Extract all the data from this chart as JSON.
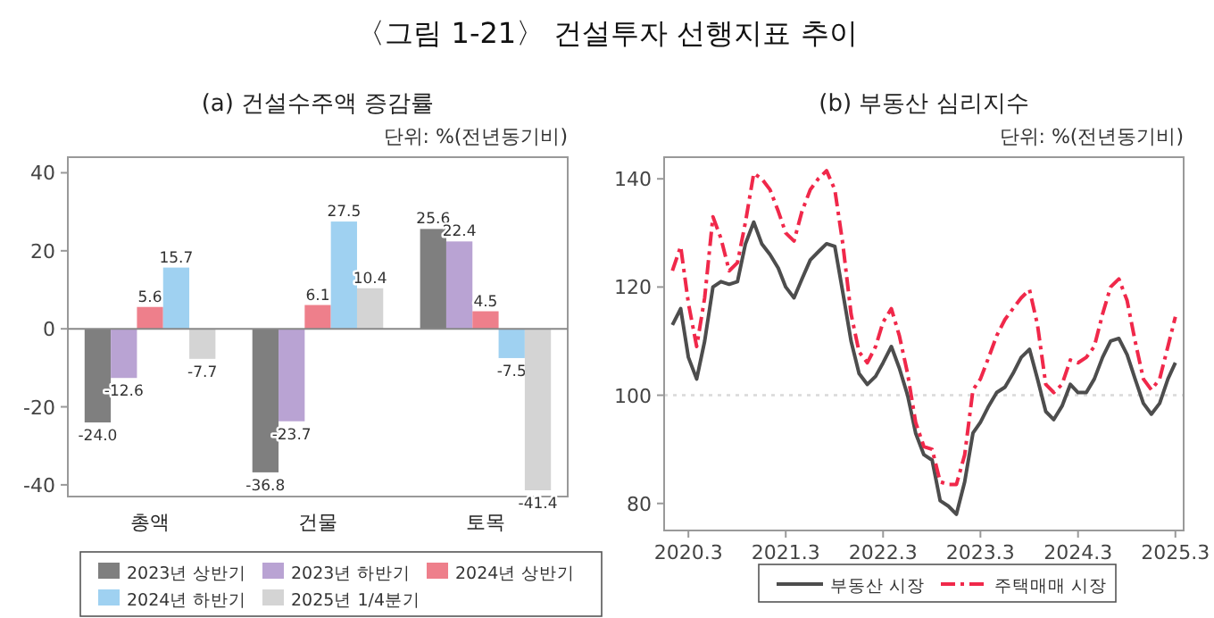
{
  "chart_data": [
    {
      "type": "bar",
      "title": "〈그림 1-21〉 건설투자 선행지표 추이",
      "subtitle": "(a) 건설수주액 증감률",
      "annotations": [
        "단위: %(전년동기비)"
      ],
      "categories": [
        "총액",
        "건물",
        "토목"
      ],
      "series": [
        {
          "name": "2023년 상반기",
          "color": "#7f7f7f",
          "values": [
            -24.0,
            -36.8,
            25.6
          ],
          "value_labels": [
            "-24.0",
            "-36.8",
            "25.6"
          ]
        },
        {
          "name": "2023년 하반기",
          "color": "#b9a3d3",
          "values": [
            -12.6,
            -23.7,
            22.4
          ],
          "value_labels": [
            "-12.6",
            "-23.7",
            "22.4"
          ]
        },
        {
          "name": "2024년 상반기",
          "color": "#ee7f8b",
          "values": [
            5.6,
            6.1,
            4.5
          ],
          "value_labels": [
            "5.6",
            "6.1",
            "4.5"
          ]
        },
        {
          "name": "2024년 하반기",
          "color": "#9fd1f1",
          "values": [
            15.7,
            27.5,
            -7.5
          ],
          "value_labels": [
            "15.7",
            "27.5",
            "-7.5"
          ]
        },
        {
          "name": "2025년 1/4분기",
          "color": "#d4d4d4",
          "values": [
            -7.7,
            10.4,
            -41.4
          ],
          "value_labels": [
            "-7.7",
            "10.4",
            "-41.4"
          ]
        }
      ],
      "ylim": [
        -43,
        44
      ],
      "yticks": [
        -40,
        -20,
        0,
        20,
        40
      ],
      "ref_lines": [
        {
          "axis": "y",
          "value": 0,
          "color": "#888888",
          "line_style": "solid"
        }
      ],
      "legend": "bottom",
      "grid": false
    },
    {
      "type": "line",
      "subtitle": "(b) 부동산 심리지수",
      "annotations": [
        "단위: %(전년동기비)"
      ],
      "x": [
        "2020-01",
        "2020-02",
        "2020-03",
        "2020-04",
        "2020-05",
        "2020-06",
        "2020-07",
        "2020-08",
        "2020-09",
        "2020-10",
        "2020-11",
        "2020-12",
        "2021-01",
        "2021-02",
        "2021-03",
        "2021-04",
        "2021-05",
        "2021-06",
        "2021-07",
        "2021-08",
        "2021-09",
        "2021-10",
        "2021-11",
        "2021-12",
        "2022-01",
        "2022-02",
        "2022-03",
        "2022-04",
        "2022-05",
        "2022-06",
        "2022-07",
        "2022-08",
        "2022-09",
        "2022-10",
        "2022-11",
        "2022-12",
        "2023-01",
        "2023-02",
        "2023-03",
        "2023-04",
        "2023-05",
        "2023-06",
        "2023-07",
        "2023-08",
        "2023-09",
        "2023-10",
        "2023-11",
        "2023-12",
        "2024-01",
        "2024-02",
        "2024-03",
        "2024-04",
        "2024-05",
        "2024-06",
        "2024-07",
        "2024-08",
        "2024-09",
        "2024-10",
        "2024-11",
        "2024-12",
        "2025-01",
        "2025-02",
        "2025-03"
      ],
      "series": [
        {
          "name": "부동산 시장",
          "color": "#4d4d4d",
          "line_style": "solid",
          "values": [
            113,
            116,
            107,
            103,
            110,
            120,
            121,
            120.5,
            121,
            128,
            132,
            128,
            126,
            123.5,
            120,
            118,
            121.5,
            125,
            126.5,
            128,
            127.5,
            119,
            110,
            104,
            102,
            103.5,
            106,
            109,
            105,
            100,
            93,
            89,
            88,
            80.5,
            79.5,
            78,
            84,
            93,
            95,
            98,
            100.5,
            101.5,
            104,
            107,
            108.5,
            103,
            97,
            95.5,
            98,
            102,
            100.5,
            100.5,
            103,
            107,
            110,
            110.5,
            107.5,
            103,
            98.5,
            96.5,
            98.5,
            103,
            106
          ]
        },
        {
          "name": "주택매매 시장",
          "color": "#f0284a",
          "line_style": "dashed",
          "values": [
            123,
            127.5,
            117,
            109,
            118,
            133,
            129,
            123,
            124.5,
            132,
            141,
            140,
            138,
            134,
            130,
            128.5,
            134,
            138,
            140,
            141.5,
            138,
            128,
            115,
            108,
            106,
            109,
            113.5,
            116,
            111,
            104,
            95,
            90.5,
            90,
            84,
            83.5,
            83.5,
            89,
            101,
            103,
            107,
            111,
            114,
            116,
            118,
            119.5,
            113,
            102,
            100.5,
            102,
            106.5,
            106,
            107,
            109,
            115,
            120,
            121.5,
            117.5,
            110,
            103,
            101,
            103,
            109,
            114.5
          ]
        }
      ],
      "xlim": [
        "2019-12",
        "2025-04"
      ],
      "xticks": [
        {
          "value": "2020-03",
          "label": "2020.3"
        },
        {
          "value": "2021-03",
          "label": "2021.3"
        },
        {
          "value": "2022-03",
          "label": "2022.3"
        },
        {
          "value": "2023-03",
          "label": "2023.3"
        },
        {
          "value": "2024-03",
          "label": "2024.3"
        },
        {
          "value": "2025-03",
          "label": "2025.3"
        }
      ],
      "ylim": [
        75,
        144
      ],
      "yticks": [
        80,
        100,
        120,
        140
      ],
      "ref_lines": [
        {
          "axis": "y",
          "value": 100,
          "color": "#d9d9d9",
          "line_style": "dotted"
        }
      ],
      "legend": "bottom",
      "grid": false
    }
  ]
}
